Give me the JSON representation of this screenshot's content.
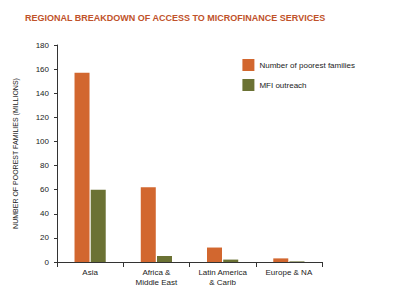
{
  "chart_data": {
    "type": "bar",
    "title": "REGIONAL BREAKDOWN OF ACCESS TO MICROFINANCE SERVICES",
    "y_label": "NUMBER OF POOREST FAMILIES (MILLIONS)",
    "categories": [
      "Asia",
      "Africa &\nMiddle East",
      "Latin America\n& Carib",
      "Europe & NA"
    ],
    "series": [
      {
        "name": "Number of poorest families",
        "color": "#d2672f",
        "values": [
          157,
          62,
          12,
          3
        ]
      },
      {
        "name": "MFI outreach",
        "color": "#6b7234",
        "values": [
          60,
          5,
          2,
          0.5
        ]
      }
    ],
    "ylim": [
      0,
      180
    ],
    "yticks": [
      0,
      20,
      40,
      60,
      80,
      100,
      120,
      140,
      160,
      180
    ],
    "grid": false,
    "legend": "upper right"
  }
}
